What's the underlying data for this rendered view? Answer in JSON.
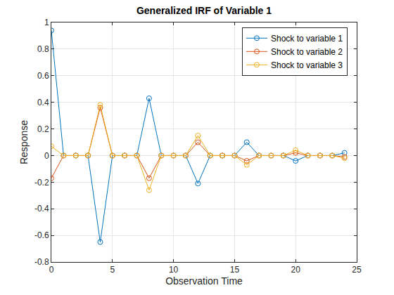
{
  "chart_data": {
    "type": "line",
    "title": "Generalized IRF of Variable 1",
    "x_label": "Observation Time",
    "y_label": "Response",
    "x": [
      0,
      1,
      2,
      3,
      4,
      5,
      6,
      7,
      8,
      9,
      10,
      11,
      12,
      13,
      14,
      15,
      16,
      17,
      18,
      19,
      20,
      21,
      22,
      23,
      24
    ],
    "series": [
      {
        "name": "Shock to variable 1",
        "color": "#0072BD",
        "values": [
          0.94,
          0,
          0,
          0,
          -0.65,
          0,
          0,
          0,
          0.43,
          0,
          0,
          0,
          -0.21,
          0,
          0,
          0,
          0.1,
          0,
          0,
          0,
          -0.04,
          0,
          0,
          0,
          0.02
        ]
      },
      {
        "name": "Shock to variable 2",
        "color": "#D95319",
        "values": [
          -0.17,
          0,
          0,
          0,
          0.36,
          0,
          0,
          0,
          -0.17,
          0,
          0,
          0,
          0.1,
          0,
          0,
          0,
          -0.04,
          0,
          0,
          0,
          0.02,
          0,
          0,
          0,
          -0.01
        ]
      },
      {
        "name": "Shock to variable 3",
        "color": "#EDB120",
        "values": [
          0.07,
          0,
          0,
          0,
          0.38,
          0,
          0,
          0,
          -0.26,
          0,
          0,
          0,
          0.15,
          0,
          0,
          0,
          -0.07,
          0,
          0,
          0,
          0.04,
          0,
          0,
          0,
          -0.02
        ]
      }
    ],
    "xlim": [
      0,
      25
    ],
    "xticks": [
      0,
      5,
      10,
      15,
      20,
      25
    ],
    "ylim": [
      -0.8,
      1
    ],
    "yticks": [
      -0.8,
      -0.6,
      -0.4,
      -0.2,
      0,
      0.2,
      0.4,
      0.6,
      0.8,
      1
    ],
    "grid": true,
    "legend": "top-right",
    "marker": "circle-open",
    "line_style": "solid"
  }
}
